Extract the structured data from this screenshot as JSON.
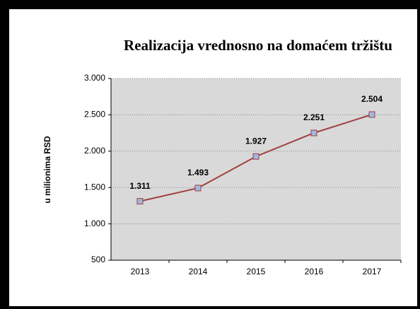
{
  "chart_data": {
    "type": "line",
    "title": "Realizacija vrednosno na domaćem tržištu",
    "y_label": "u milionima RSD",
    "categories": [
      "2013",
      "2014",
      "2015",
      "2016",
      "2017"
    ],
    "series": [
      {
        "name": "Realizacija",
        "color": "#a0403f",
        "marker_color": "#9db8e2",
        "values": [
          1311,
          1493,
          1927,
          2251,
          2504
        ],
        "value_labels": [
          "1.311",
          "1.493",
          "1.927",
          "2.251",
          "2.504"
        ]
      }
    ],
    "ylim": [
      500,
      3000
    ],
    "yticks": [
      {
        "value": 500,
        "label": "500"
      },
      {
        "value": 1000,
        "label": "1.000"
      },
      {
        "value": 1500,
        "label": "1.500"
      },
      {
        "value": 2000,
        "label": "2.000"
      },
      {
        "value": 2500,
        "label": "2.500"
      },
      {
        "value": 3000,
        "label": "3.000"
      }
    ],
    "grid": true
  }
}
